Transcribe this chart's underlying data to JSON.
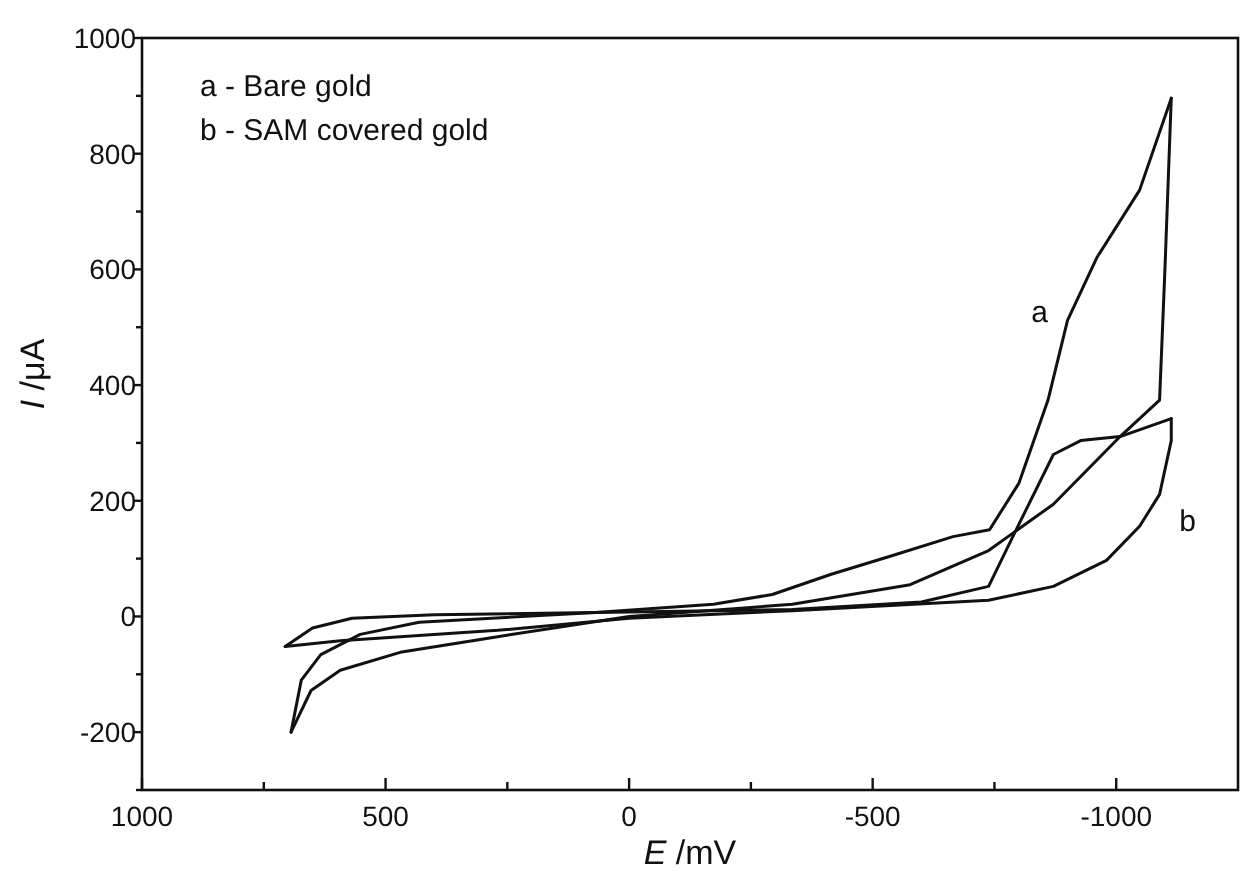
{
  "chart_data": {
    "type": "line",
    "xlabel": "E /mV",
    "ylabel": "I /μA",
    "xlim": [
      1000,
      -1250
    ],
    "ylim": [
      -300,
      1000
    ],
    "xticks": [
      1000,
      {
        "value": 750,
        "label": null
      },
      500,
      {
        "value": 250,
        "label": null
      },
      0,
      {
        "value": -250,
        "label": null
      },
      -500,
      {
        "value": -750,
        "label": null
      },
      -1000
    ],
    "yticks": [
      {
        "value": -300,
        "label": null
      },
      -200,
      {
        "value": -100,
        "label": null
      },
      0,
      {
        "value": 100,
        "label": null
      },
      200,
      {
        "value": 300,
        "label": null
      },
      400,
      {
        "value": 500,
        "label": null
      },
      600,
      {
        "value": 700,
        "label": null
      },
      800,
      {
        "value": 900,
        "label": null
      },
      1000
    ],
    "annotations": [
      "a - Bare gold",
      "b - SAM covered gold"
    ],
    "grid": false,
    "marker": "none",
    "line_style": "solid",
    "series": [
      {
        "name": "a",
        "color": "#111111",
        "x": [
          694,
          673,
          633,
          552,
          431,
          69,
          -173,
          -294,
          -415,
          -536,
          -665,
          -740,
          -800,
          -860,
          -900,
          -960,
          -1048,
          -1113
        ],
        "values": [
          -200,
          -110,
          -66,
          -31,
          -10,
          7,
          21,
          38,
          73,
          104,
          138,
          150,
          230,
          374,
          512,
          620,
          737,
          896
        ]
      },
      {
        "color": "#111111",
        "x": [
          -1113,
          -1100,
          -1089,
          -1008,
          -871,
          -738,
          -577,
          -335,
          0,
          270,
          470,
          593,
          653,
          694
        ],
        "values": [
          896,
          600,
          374,
          311,
          194,
          114,
          55,
          21,
          0,
          -35,
          -62,
          -93,
          -128,
          -200
        ]
      },
      {
        "name": "b",
        "color": "#111111",
        "x": [
          706,
          650,
          569,
          400,
          69,
          -335,
          -600,
          -738,
          -790,
          -871,
          -927,
          -1008,
          -1113
        ],
        "values": [
          -52,
          -20,
          -3,
          3,
          7,
          12,
          25,
          52,
          142,
          280,
          304,
          311,
          342
        ]
      },
      {
        "color": "#111111",
        "x": [
          -1113,
          -1113,
          -1089,
          -1048,
          -980,
          -871,
          -738,
          -335,
          0,
          270,
          470,
          593,
          706
        ],
        "values": [
          342,
          304,
          211,
          156,
          97,
          52,
          28,
          10,
          -3,
          -24,
          -35,
          -42,
          -52
        ]
      }
    ]
  }
}
